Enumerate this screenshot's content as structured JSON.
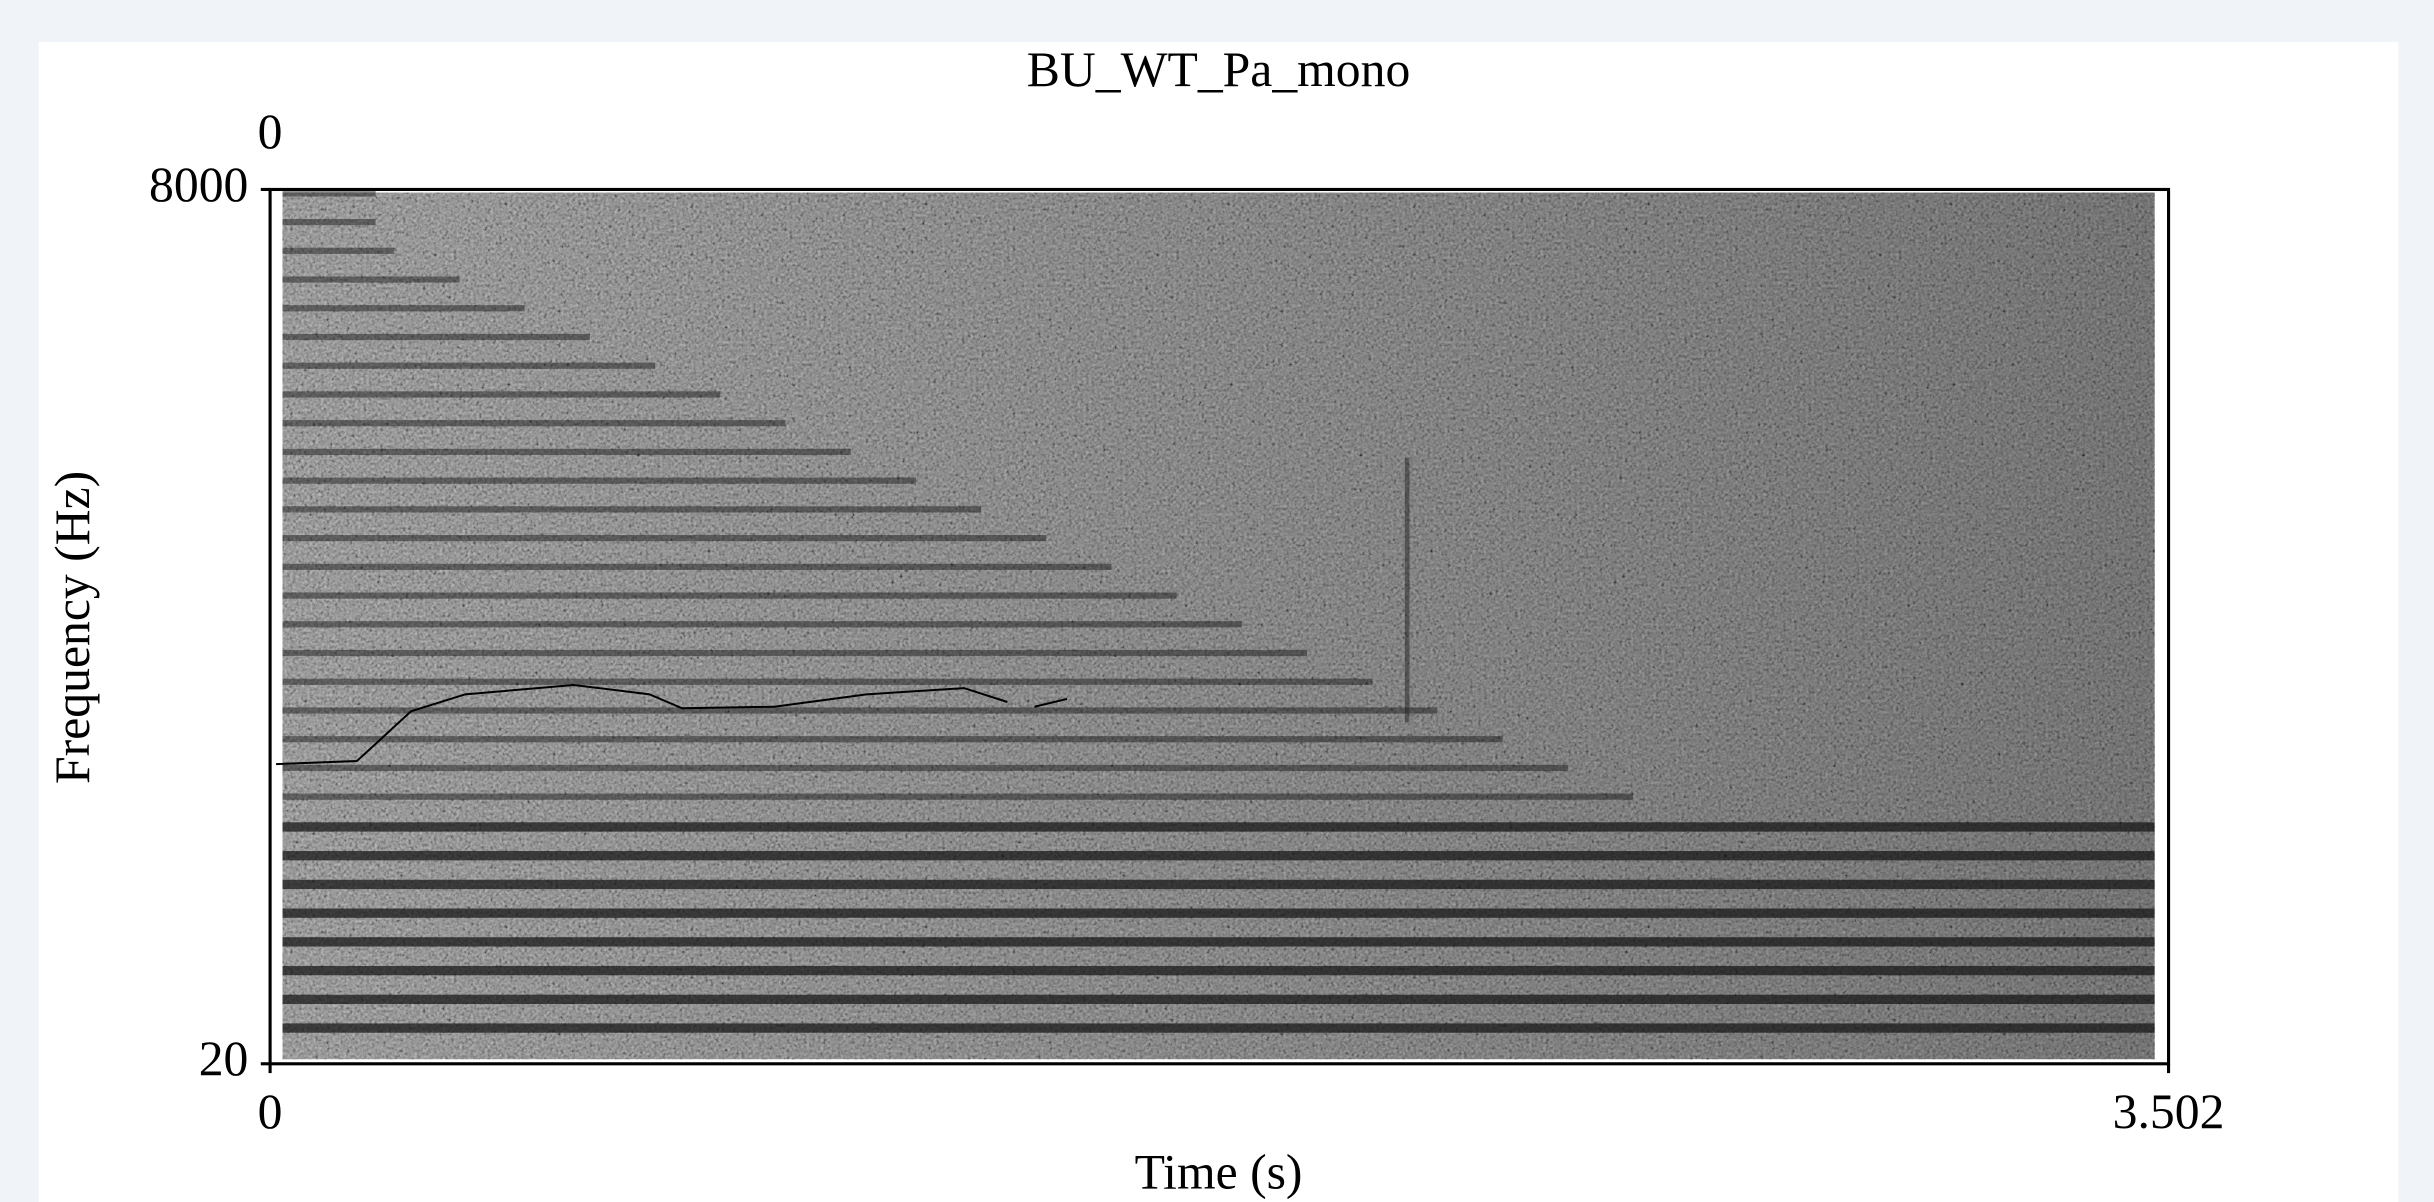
{
  "chart_data": {
    "type": "spectrogram",
    "title": "BU_WT_Pa_mono",
    "x_label": "Time (s)",
    "y_label": "Frequency (Hz)",
    "top_label": "0",
    "xlim": [
      0,
      3.502
    ],
    "xticks": [
      0,
      3.502
    ],
    "ylim": [
      20,
      8000
    ],
    "yticks": [
      20,
      8000
    ],
    "pitch": {
      "color": "#000000",
      "x": [
        0.011,
        0.16,
        0.26,
        0.36,
        0.56,
        0.7,
        0.76,
        0.93,
        1.1,
        1.28,
        1.36,
        null,
        1.41,
        1.47
      ],
      "values": [
        2755,
        2783,
        3237,
        3392,
        3477,
        3392,
        3265,
        3279,
        3392,
        3449,
        3322,
        null,
        3279,
        3350
      ]
    }
  }
}
